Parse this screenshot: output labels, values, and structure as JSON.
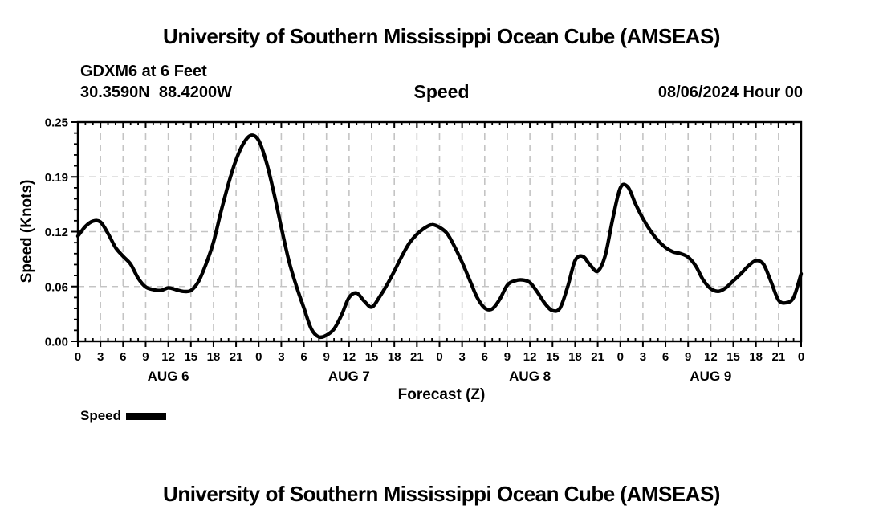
{
  "header": {
    "title": "University of Southern Mississippi Ocean Cube (AMSEAS)",
    "station": "GDXM6 at 6 Feet",
    "coords": "30.3590N  88.4200W",
    "plot_title": "Speed",
    "run_label": "08/06/2024 Hour 00"
  },
  "footer": {
    "title": "University of Southern Mississippi Ocean Cube (AMSEAS)"
  },
  "legend": {
    "label": "Speed",
    "swatch_color": "#000000"
  },
  "colors": {
    "line": "#000000",
    "grid": "#c4c4c4",
    "frame": "#000000",
    "background": "#ffffff",
    "text": "#000000"
  },
  "chart_data": {
    "type": "line",
    "title": "Speed",
    "xlabel": "Forecast (Z)",
    "ylabel": "Speed (Knots)",
    "ylim": [
      0.0,
      0.25
    ],
    "x_hours_total": 96,
    "xtick_step_hours": 3,
    "minor_xtick_step_hours": 1,
    "xtick_positions": [
      0,
      3,
      6,
      9,
      12,
      15,
      18,
      21,
      24,
      27,
      30,
      33,
      36,
      39,
      42,
      45,
      48,
      51,
      54,
      57,
      60,
      63,
      66,
      69,
      72,
      75,
      78,
      81,
      84,
      87,
      90,
      93,
      96
    ],
    "xtick_labels": [
      "0",
      "3",
      "6",
      "9",
      "12",
      "15",
      "18",
      "21",
      "0",
      "3",
      "6",
      "9",
      "12",
      "15",
      "18",
      "21",
      "0",
      "3",
      "6",
      "9",
      "12",
      "15",
      "18",
      "21",
      "0",
      "3",
      "6",
      "9",
      "12",
      "15",
      "18",
      "21",
      "0"
    ],
    "ytick_values": [
      0.0,
      0.0625,
      0.125,
      0.1875,
      0.25
    ],
    "ytick_labels": [
      "0.00",
      "0.06",
      "0.12",
      "0.19",
      "0.25"
    ],
    "minor_ytick_step": 0.0125,
    "grid": true,
    "legend_position": "bottom-left",
    "days": [
      {
        "label": "AUG 6",
        "center_hour": 12
      },
      {
        "label": "AUG 7",
        "center_hour": 36
      },
      {
        "label": "AUG 8",
        "center_hour": 60
      },
      {
        "label": "AUG 9",
        "center_hour": 84
      }
    ],
    "series": [
      {
        "name": "Speed",
        "units": "knots",
        "x_start_hour": 0,
        "x_step_hours": 1,
        "values": [
          0.12,
          0.131,
          0.137,
          0.136,
          0.123,
          0.107,
          0.097,
          0.088,
          0.072,
          0.062,
          0.059,
          0.058,
          0.061,
          0.059,
          0.057,
          0.058,
          0.068,
          0.088,
          0.113,
          0.148,
          0.18,
          0.207,
          0.226,
          0.235,
          0.229,
          0.205,
          0.17,
          0.13,
          0.092,
          0.063,
          0.038,
          0.014,
          0.005,
          0.007,
          0.014,
          0.03,
          0.05,
          0.055,
          0.046,
          0.039,
          0.05,
          0.064,
          0.08,
          0.097,
          0.112,
          0.122,
          0.129,
          0.133,
          0.13,
          0.123,
          0.108,
          0.09,
          0.07,
          0.05,
          0.038,
          0.037,
          0.048,
          0.064,
          0.069,
          0.07,
          0.067,
          0.056,
          0.043,
          0.035,
          0.038,
          0.062,
          0.092,
          0.097,
          0.087,
          0.08,
          0.098,
          0.14,
          0.175,
          0.176,
          0.157,
          0.14,
          0.126,
          0.115,
          0.107,
          0.102,
          0.1,
          0.096,
          0.086,
          0.07,
          0.06,
          0.057,
          0.061,
          0.069,
          0.077,
          0.086,
          0.092,
          0.088,
          0.068,
          0.047,
          0.044,
          0.05,
          0.077
        ]
      }
    ]
  }
}
